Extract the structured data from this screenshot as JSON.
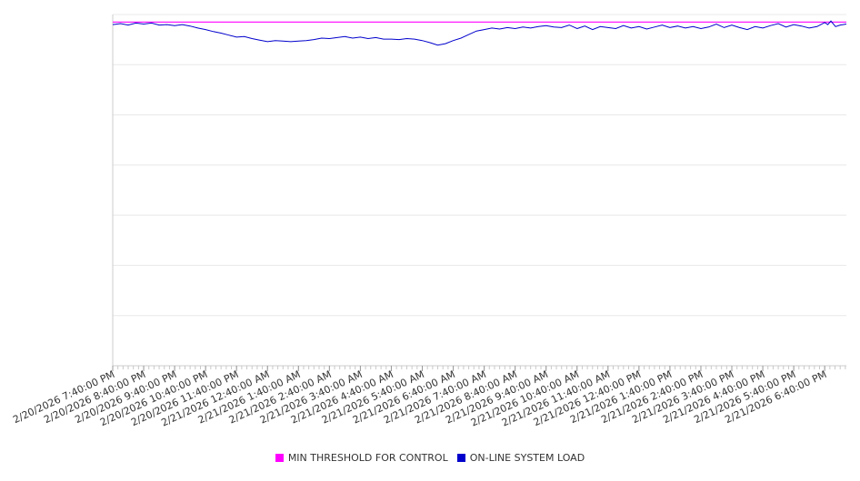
{
  "chart_data": {
    "type": "line",
    "title": "",
    "xlabel": "",
    "ylabel": "",
    "grid": true,
    "legend_position": "bottom",
    "x_tick_labels": [
      "2/20/2026 7:40:00 PM",
      "2/20/2026 8:40:00 PM",
      "2/20/2026 9:40:00 PM",
      "2/20/2026 10:40:00 PM",
      "2/20/2026 11:40:00 PM",
      "2/21/2026 12:40:00 AM",
      "2/21/2026 1:40:00 AM",
      "2/21/2026 2:40:00 AM",
      "2/21/2026 3:40:00 AM",
      "2/21/2026 4:40:00 AM",
      "2/21/2026 5:40:00 AM",
      "2/21/2026 6:40:00 AM",
      "2/21/2026 7:40:00 AM",
      "2/21/2026 8:40:00 AM",
      "2/21/2026 9:40:00 AM",
      "2/21/2026 10:40:00 AM",
      "2/21/2026 11:40:00 AM",
      "2/21/2026 12:40:00 PM",
      "2/21/2026 1:40:00 PM",
      "2/21/2026 2:40:00 PM",
      "2/21/2026 3:40:00 PM",
      "2/21/2026 4:40:00 PM",
      "2/21/2026 5:40:00 PM",
      "2/21/2026 6:40:00 PM"
    ],
    "series": [
      {
        "name": "MIN THRESHOLD FOR CONTROL",
        "color": "#ff00ff",
        "values": [
          [
            0,
            93.5
          ],
          [
            23.7,
            93.5
          ]
        ]
      },
      {
        "name": "ON-LINE SYSTEM LOAD",
        "color": "#0000cc",
        "values": [
          [
            0.0,
            93.0
          ],
          [
            0.25,
            93.2
          ],
          [
            0.5,
            92.9
          ],
          [
            0.75,
            93.3
          ],
          [
            1.0,
            93.1
          ],
          [
            1.25,
            93.3
          ],
          [
            1.5,
            92.9
          ],
          [
            1.75,
            93.0
          ],
          [
            2.0,
            92.8
          ],
          [
            2.25,
            93.0
          ],
          [
            2.5,
            92.7
          ],
          [
            2.75,
            92.3
          ],
          [
            3.0,
            92.0
          ],
          [
            3.25,
            91.6
          ],
          [
            3.5,
            91.3
          ],
          [
            3.75,
            90.9
          ],
          [
            4.0,
            90.5
          ],
          [
            4.25,
            90.6
          ],
          [
            4.5,
            90.2
          ],
          [
            4.75,
            89.9
          ],
          [
            5.0,
            89.6
          ],
          [
            5.25,
            89.8
          ],
          [
            5.5,
            89.7
          ],
          [
            5.75,
            89.6
          ],
          [
            6.0,
            89.7
          ],
          [
            6.25,
            89.8
          ],
          [
            6.5,
            90.0
          ],
          [
            6.75,
            90.3
          ],
          [
            7.0,
            90.2
          ],
          [
            7.25,
            90.4
          ],
          [
            7.5,
            90.6
          ],
          [
            7.75,
            90.3
          ],
          [
            8.0,
            90.5
          ],
          [
            8.25,
            90.2
          ],
          [
            8.5,
            90.4
          ],
          [
            8.75,
            90.1
          ],
          [
            9.0,
            90.1
          ],
          [
            9.25,
            90.0
          ],
          [
            9.5,
            90.2
          ],
          [
            9.75,
            90.1
          ],
          [
            10.0,
            89.8
          ],
          [
            10.25,
            89.4
          ],
          [
            10.5,
            88.9
          ],
          [
            10.75,
            89.2
          ],
          [
            11.0,
            89.8
          ],
          [
            11.25,
            90.3
          ],
          [
            11.5,
            91.0
          ],
          [
            11.75,
            91.7
          ],
          [
            12.0,
            92.0
          ],
          [
            12.25,
            92.3
          ],
          [
            12.5,
            92.1
          ],
          [
            12.75,
            92.4
          ],
          [
            13.0,
            92.2
          ],
          [
            13.25,
            92.5
          ],
          [
            13.5,
            92.3
          ],
          [
            13.75,
            92.6
          ],
          [
            14.0,
            92.8
          ],
          [
            14.25,
            92.5
          ],
          [
            14.5,
            92.4
          ],
          [
            14.75,
            92.9
          ],
          [
            15.0,
            92.2
          ],
          [
            15.25,
            92.7
          ],
          [
            15.5,
            92.0
          ],
          [
            15.75,
            92.6
          ],
          [
            16.0,
            92.4
          ],
          [
            16.25,
            92.2
          ],
          [
            16.5,
            92.8
          ],
          [
            16.75,
            92.3
          ],
          [
            17.0,
            92.6
          ],
          [
            17.25,
            92.1
          ],
          [
            17.5,
            92.5
          ],
          [
            17.75,
            92.9
          ],
          [
            18.0,
            92.4
          ],
          [
            18.25,
            92.7
          ],
          [
            18.5,
            92.3
          ],
          [
            18.75,
            92.6
          ],
          [
            19.0,
            92.2
          ],
          [
            19.25,
            92.5
          ],
          [
            19.5,
            93.1
          ],
          [
            19.75,
            92.4
          ],
          [
            20.0,
            92.9
          ],
          [
            20.25,
            92.4
          ],
          [
            20.5,
            92.0
          ],
          [
            20.75,
            92.6
          ],
          [
            21.0,
            92.3
          ],
          [
            21.25,
            92.8
          ],
          [
            21.5,
            93.2
          ],
          [
            21.75,
            92.5
          ],
          [
            22.0,
            93.0
          ],
          [
            22.25,
            92.7
          ],
          [
            22.5,
            92.3
          ],
          [
            22.75,
            92.6
          ],
          [
            23.0,
            93.4
          ],
          [
            23.1,
            93.0
          ],
          [
            23.2,
            93.7
          ],
          [
            23.35,
            92.6
          ],
          [
            23.5,
            92.9
          ],
          [
            23.7,
            93.1
          ]
        ]
      }
    ]
  },
  "legend": {
    "items": [
      {
        "label": "MIN THRESHOLD FOR CONTROL",
        "color": "#ff00ff"
      },
      {
        "label": "ON-LINE SYSTEM LOAD",
        "color": "#0000cc"
      }
    ]
  }
}
